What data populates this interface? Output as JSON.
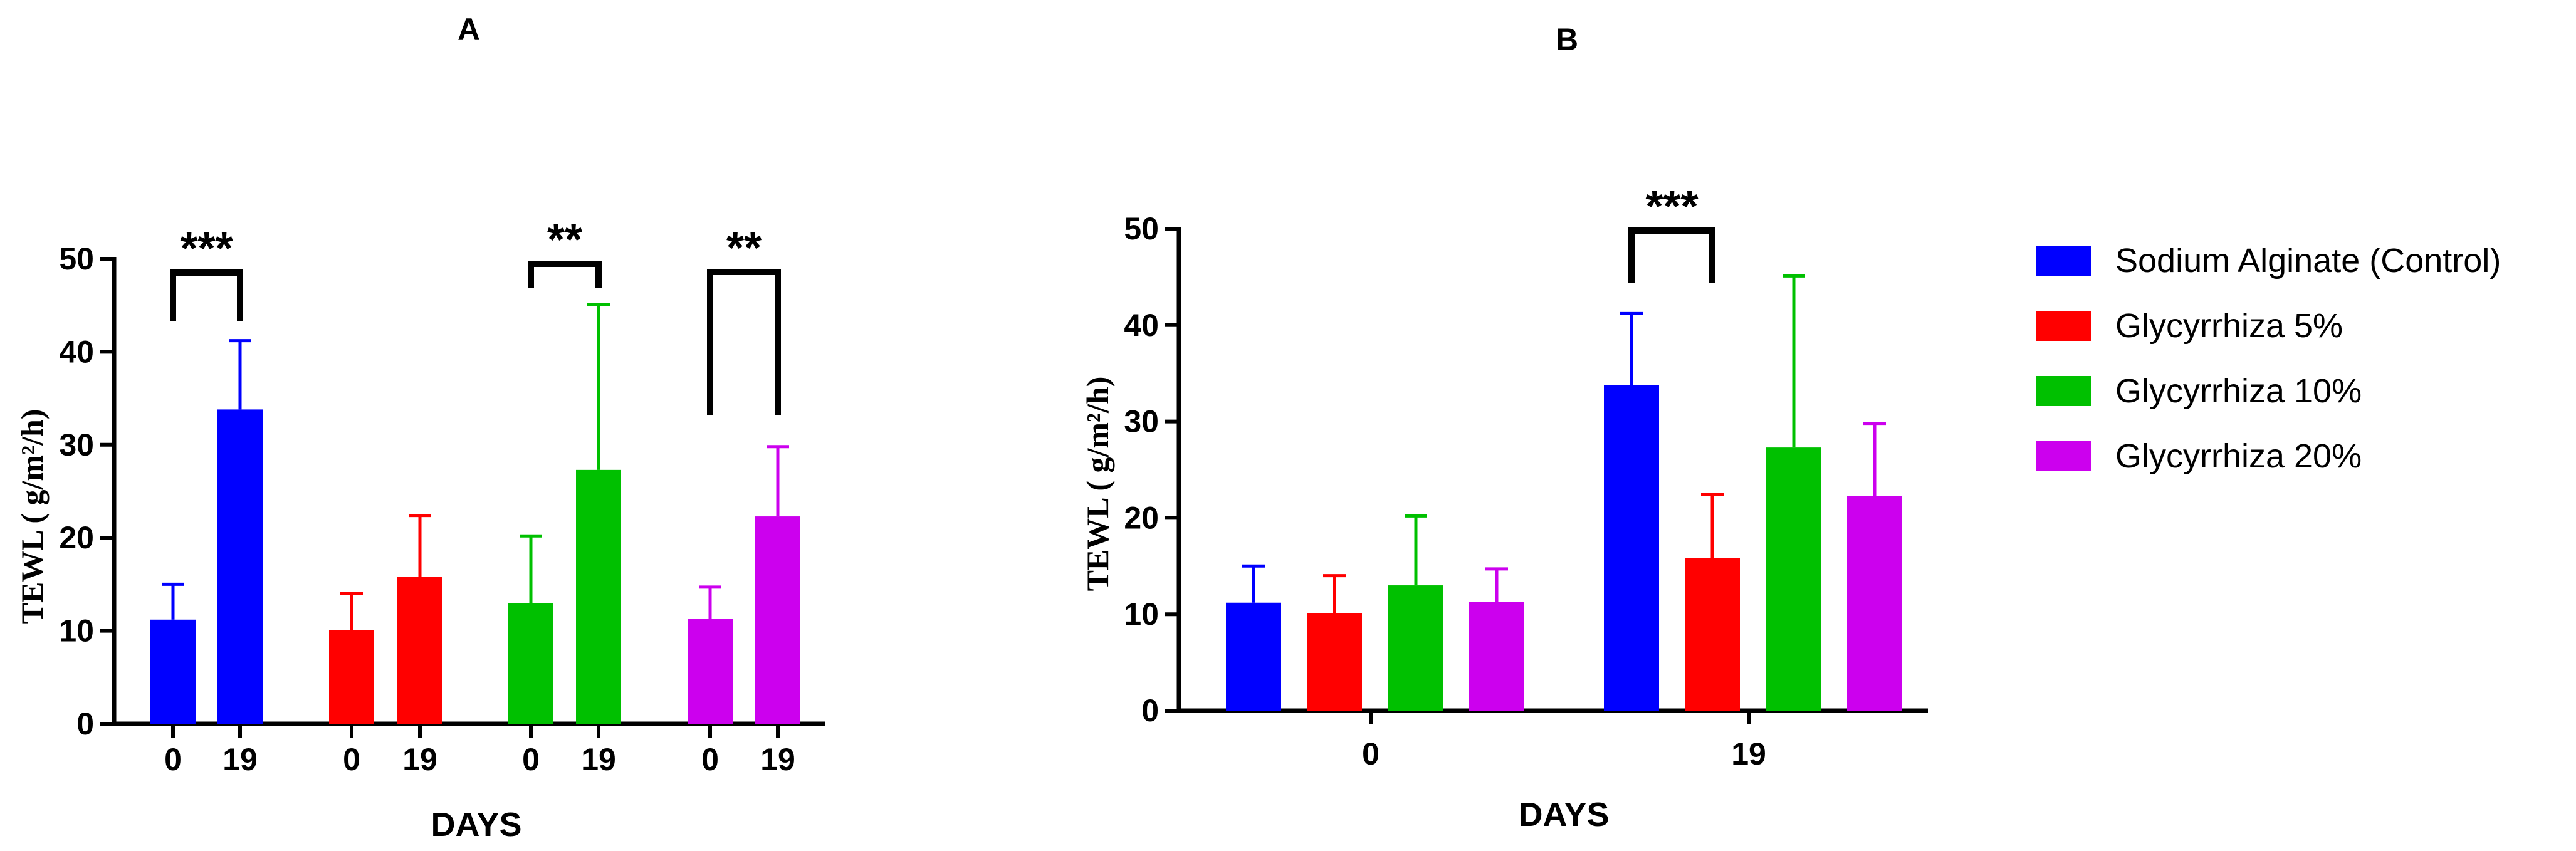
{
  "chart_data": [
    {
      "panel": "A",
      "type": "bar",
      "xlabel": "DAYS",
      "ylabel": "TEWL ( g/m²/h)",
      "ylim": [
        0,
        50
      ],
      "yticks": [
        "0",
        "10",
        "20",
        "30",
        "40",
        "50"
      ],
      "groups": [
        {
          "series": "Sodium Alginate (Control)",
          "color": "#0000FF",
          "bars": [
            {
              "day": "0",
              "value": 11.2,
              "error": 3.8
            },
            {
              "day": "19",
              "value": 33.8,
              "error": 7.4
            }
          ],
          "significance": "***"
        },
        {
          "series": "Glycyrrhiza 5%",
          "color": "#FF0000",
          "bars": [
            {
              "day": "0",
              "value": 10.1,
              "error": 3.9
            },
            {
              "day": "19",
              "value": 15.8,
              "error": 6.6
            }
          ],
          "significance": ""
        },
        {
          "series": "Glycyrrhiza 10%",
          "color": "#00C000",
          "bars": [
            {
              "day": "0",
              "value": 13.0,
              "error": 7.2
            },
            {
              "day": "19",
              "value": 27.3,
              "error": 17.8
            }
          ],
          "significance": "**"
        },
        {
          "series": "Glycyrrhiza 20%",
          "color": "#CC00EE",
          "bars": [
            {
              "day": "0",
              "value": 11.3,
              "error": 3.4
            },
            {
              "day": "19",
              "value": 22.3,
              "error": 7.5
            }
          ],
          "significance": "**"
        }
      ]
    },
    {
      "panel": "B",
      "type": "bar",
      "xlabel": "DAYS",
      "ylabel": "TEWL ( g/m²/h)",
      "ylim": [
        0,
        50
      ],
      "yticks": [
        "0",
        "10",
        "20",
        "30",
        "40",
        "50"
      ],
      "categories": [
        "0",
        "19"
      ],
      "series": [
        {
          "name": "Sodium Alginate (Control)",
          "color": "#0000FF",
          "values": [
            11.2,
            33.8
          ],
          "errors": [
            3.8,
            7.4
          ]
        },
        {
          "name": "Glycyrrhiza 5%",
          "color": "#FF0000",
          "values": [
            10.1,
            15.8
          ],
          "errors": [
            3.9,
            6.6
          ]
        },
        {
          "name": "Glycyrrhiza 10%",
          "color": "#00C000",
          "values": [
            13.0,
            27.3
          ],
          "errors": [
            7.2,
            17.8
          ]
        },
        {
          "name": "Glycyrrhiza 20%",
          "color": "#CC00EE",
          "values": [
            11.3,
            22.3
          ],
          "errors": [
            3.4,
            7.5
          ]
        }
      ],
      "annotations": [
        {
          "category": "19",
          "between": [
            "Sodium Alginate (Control)",
            "Glycyrrhiza 5%"
          ],
          "label": "***"
        }
      ]
    }
  ],
  "legend": {
    "placement": "right",
    "items": [
      {
        "label": "Sodium Alginate (Control)",
        "color": "#0000FF"
      },
      {
        "label": "Glycyrrhiza 5%",
        "color": "#FF0000"
      },
      {
        "label": "Glycyrrhiza 10%",
        "color": "#00C000"
      },
      {
        "label": "Glycyrrhiza 20%",
        "color": "#CC00EE"
      }
    ]
  }
}
